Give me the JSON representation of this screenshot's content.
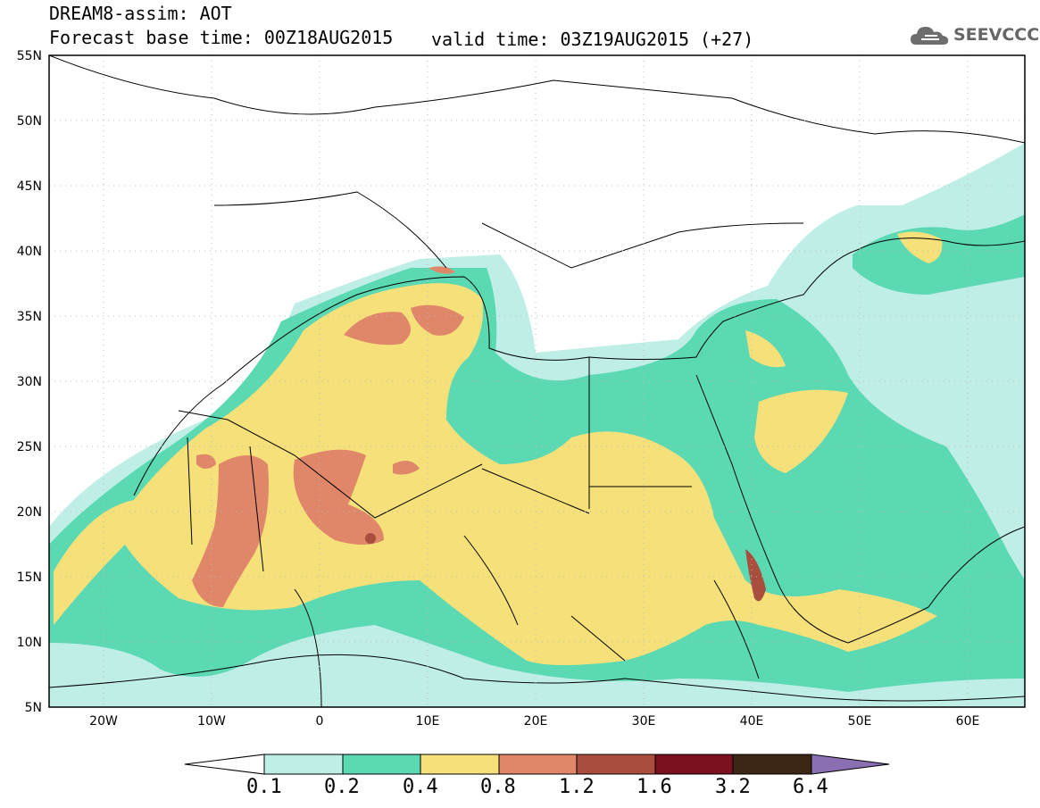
{
  "header": {
    "title": "DREAM8-assim: AOT",
    "base_time": "Forecast base time: 00Z18AUG2015",
    "valid_time": "valid time: 03Z19AUG2015 (+27)",
    "logo_text": "SEEVCCC",
    "logo_icon": "cloud-icon"
  },
  "map": {
    "lat_labels": [
      "55N",
      "50N",
      "45N",
      "40N",
      "35N",
      "30N",
      "25N",
      "20N",
      "15N",
      "10N",
      "5N"
    ],
    "lon_labels": [
      "20W",
      "10W",
      "0",
      "10E",
      "20E",
      "30E",
      "40E",
      "50E",
      "60E"
    ],
    "grid": true,
    "extent": {
      "lon": [
        -25,
        65
      ],
      "lat": [
        5,
        55
      ]
    }
  },
  "colorbar": {
    "labels": [
      "0.1",
      "0.2",
      "0.4",
      "0.8",
      "1.2",
      "1.6",
      "3.2",
      "6.4"
    ],
    "colors": [
      "#ffffff",
      "#bfeee6",
      "#5ad9b3",
      "#f5e07a",
      "#e0876a",
      "#a94d3d",
      "#7a0f1e",
      "#3b2513",
      "#8a6fb3"
    ]
  }
}
